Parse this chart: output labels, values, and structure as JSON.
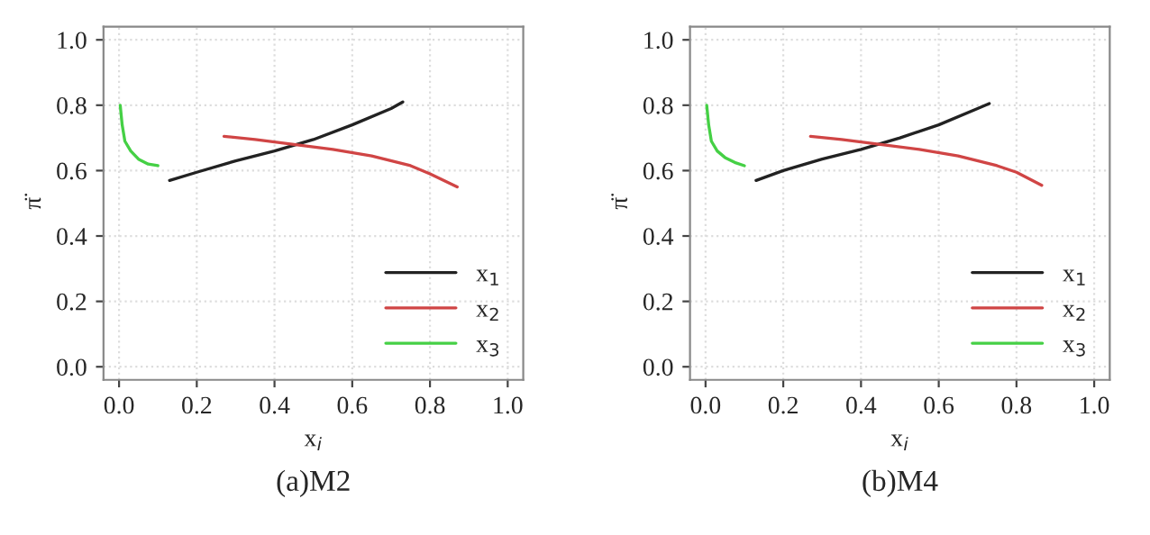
{
  "chart_data": [
    {
      "type": "line",
      "title": "(a)M2",
      "xlabel": "x$_{i}$",
      "ylabel": "π̈",
      "xlim": [
        -0.04,
        1.04
      ],
      "ylim": [
        -0.04,
        1.04
      ],
      "xticks": [
        {
          "value": 0,
          "label": "0.0"
        },
        {
          "value": 0.2,
          "label": "0.2"
        },
        {
          "value": 0.4,
          "label": "0.4"
        },
        {
          "value": 0.6,
          "label": "0.6"
        },
        {
          "value": 0.8,
          "label": "0.8"
        },
        {
          "value": 1,
          "label": "1.0"
        }
      ],
      "yticks": [
        {
          "value": 0,
          "label": "0.0"
        },
        {
          "value": 0.2,
          "label": "0.2"
        },
        {
          "value": 0.4,
          "label": "0.4"
        },
        {
          "value": 0.6,
          "label": "0.6"
        },
        {
          "value": 0.8,
          "label": "0.8"
        },
        {
          "value": 1,
          "label": "1.0"
        }
      ],
      "grid": true,
      "legend": "bottom right",
      "marker": "none",
      "line_style": "solid",
      "series": [
        {
          "name": "x$_{1}$",
          "color": "#222222",
          "x": [
            0.13,
            0.2,
            0.3,
            0.4,
            0.5,
            0.6,
            0.7,
            0.73
          ],
          "values": [
            0.57,
            0.595,
            0.63,
            0.66,
            0.695,
            0.74,
            0.79,
            0.81
          ]
        },
        {
          "name": "x$_{2}$",
          "color": "#d04545",
          "x": [
            0.27,
            0.35,
            0.45,
            0.55,
            0.65,
            0.75,
            0.8,
            0.87
          ],
          "values": [
            0.705,
            0.695,
            0.68,
            0.665,
            0.645,
            0.615,
            0.59,
            0.55
          ]
        },
        {
          "name": "x$_{3}$",
          "color": "#45d045",
          "x": [
            0.003,
            0.008,
            0.015,
            0.03,
            0.05,
            0.075,
            0.1
          ],
          "values": [
            0.8,
            0.74,
            0.69,
            0.66,
            0.635,
            0.62,
            0.615
          ]
        }
      ]
    },
    {
      "type": "line",
      "title": "(b)M4",
      "xlabel": "x$_{i}$",
      "ylabel": "π̈",
      "xlim": [
        -0.04,
        1.04
      ],
      "ylim": [
        -0.04,
        1.04
      ],
      "xticks": [
        {
          "value": 0,
          "label": "0.0"
        },
        {
          "value": 0.2,
          "label": "0.2"
        },
        {
          "value": 0.4,
          "label": "0.4"
        },
        {
          "value": 0.6,
          "label": "0.6"
        },
        {
          "value": 0.8,
          "label": "0.8"
        },
        {
          "value": 1,
          "label": "1.0"
        }
      ],
      "yticks": [
        {
          "value": 0,
          "label": "0.0"
        },
        {
          "value": 0.2,
          "label": "0.2"
        },
        {
          "value": 0.4,
          "label": "0.4"
        },
        {
          "value": 0.6,
          "label": "0.6"
        },
        {
          "value": 0.8,
          "label": "0.8"
        },
        {
          "value": 1,
          "label": "1.0"
        }
      ],
      "grid": true,
      "legend": "bottom right",
      "marker": "none",
      "line_style": "solid",
      "series": [
        {
          "name": "x$_{1}$",
          "color": "#222222",
          "x": [
            0.13,
            0.2,
            0.3,
            0.4,
            0.5,
            0.6,
            0.7,
            0.73
          ],
          "values": [
            0.57,
            0.6,
            0.635,
            0.665,
            0.7,
            0.74,
            0.79,
            0.805
          ]
        },
        {
          "name": "x$_{2}$",
          "color": "#d04545",
          "x": [
            0.27,
            0.35,
            0.45,
            0.55,
            0.65,
            0.75,
            0.8,
            0.865
          ],
          "values": [
            0.705,
            0.695,
            0.68,
            0.665,
            0.645,
            0.615,
            0.595,
            0.555
          ]
        },
        {
          "name": "x$_{3}$",
          "color": "#45d045",
          "x": [
            0.003,
            0.008,
            0.015,
            0.03,
            0.05,
            0.075,
            0.1
          ],
          "values": [
            0.8,
            0.74,
            0.69,
            0.66,
            0.64,
            0.625,
            0.615
          ]
        }
      ]
    }
  ]
}
